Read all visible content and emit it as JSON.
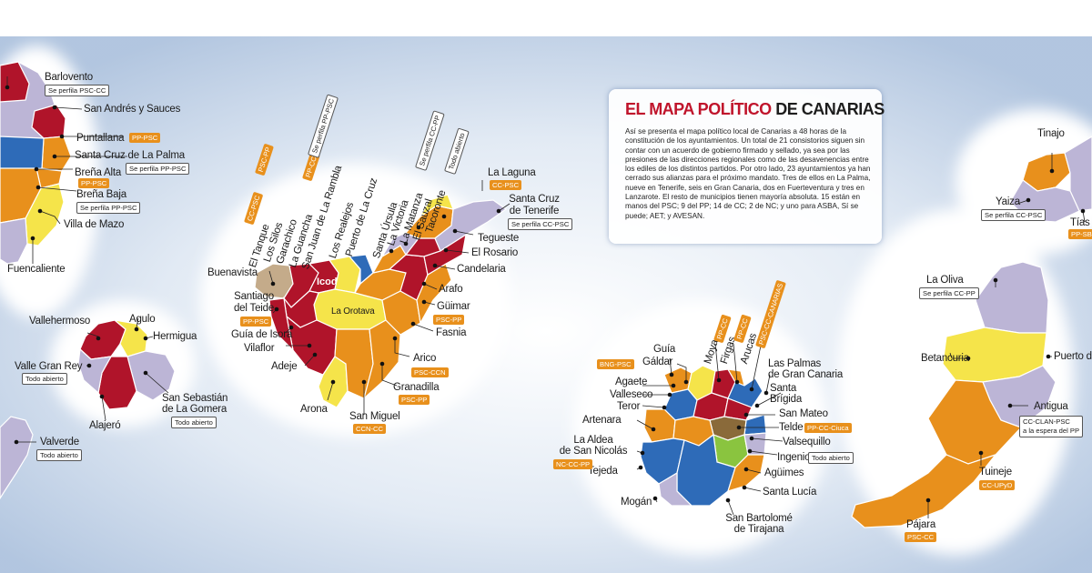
{
  "title": {
    "part1": "EL ",
    "part2": "MAPA POLÍTICO",
    "part3": " DE CANARIAS"
  },
  "body": "Así se presenta el mapa político local de Canarias a 48 horas de la constitución de los ayuntamientos. Un total de 21 consistorios siguen sin contar con un acuerdo de gobierno firmado y sellado, ya sea por las presiones de las direcciones regionales como de las desavenencias entre los ediles de los distintos partidos. Por otro lado, 23 ayuntamientos ya han cerrado sus alianzas para el próximo mandato. Tres de ellos en La Palma, nueve en Tenerife, seis en Gran Canaria, dos en Fuerteventura y tres en Lanzarote. El resto de municipios tienen mayoría absoluta. 15 están en manos del PSC; 9 del PP; 14 de CC; 2 de NC; y uno para ASBA, Sí se puede; AET; y AVESAN.",
  "colors": {
    "psc": "#b0142a",
    "cc": "#e8901c",
    "pp": "#2e6bb8",
    "mixed": "#f5e44a",
    "nc": "#b8a6d2",
    "other": "#8ac43f",
    "todo": "#bcb5d6"
  },
  "la_palma": {
    "barlovento": "Barlovento",
    "barlovento_tag": "Se perfila PSC-CC",
    "san_andres": "San Andrés y Sauces",
    "puntallana": "Puntallana",
    "puntallana_tag": "PP-PSC",
    "santa_cruz": "Santa Cruz de La Palma",
    "santa_cruz_tag": "Se perfila PP-PSC",
    "brena_alta": "Breña Alta",
    "brena_alta_tag": "PP-PSC",
    "brena_baja": "Breña Baja",
    "brena_baja_tag": "Se perfila PP-PSC",
    "mazo": "Villa de Mazo",
    "fuencaliente": "Fuencaliente"
  },
  "la_gomera": {
    "vallehermoso": "Vallehermoso",
    "agulo": "Agulo",
    "hermigua": "Hermigua",
    "valle_gran_rey": "Valle Gran Rey",
    "valle_gran_rey_tag": "Todo abierto",
    "san_sebastian_1": "San Sebastián",
    "san_sebastian_2": "de La Gomera",
    "san_sebastian_tag": "Todo abierto",
    "alajero": "Alajeró"
  },
  "el_hierro": {
    "valverde": "Valverde",
    "valverde_tag": "Todo abierto"
  },
  "tenerife": {
    "la_laguna": "La Laguna",
    "la_laguna_tag": "CC-PSC",
    "santa_cruz_1": "Santa Cruz",
    "santa_cruz_2": "de Tenerife",
    "santa_cruz_tag": "Se perfila CC-PSC",
    "tegueste": "Tegueste",
    "el_rosario": "El Rosario",
    "candelaria": "Candelaria",
    "arafo": "Arafo",
    "guimar": "Güimar",
    "guimar_tag": "PSC-PP",
    "fasnia": "Fasnia",
    "arico": "Arico",
    "arico_tag": "PSC-CCN",
    "granadilla": "Granadilla",
    "granadilla_tag": "PSC-PP",
    "san_miguel": "San Miguel",
    "san_miguel_tag": "CCN-CC",
    "arona": "Arona",
    "adeje": "Adeje",
    "vilaflor": "Vilaflor",
    "guia_isora": "Guía de Isora",
    "santiago_1": "Santiago",
    "santiago_2": "del Teide",
    "santiago_tag": "PP-PSC",
    "buenavista": "Buenavista",
    "icod": "Icod",
    "la_orotava": "La Orotava",
    "el_tanque": "El Tanque",
    "el_tanque_tag": "CC-PSC",
    "los_silos": "Los Silos",
    "garachico": "Garachico",
    "la_guancha": "La Guancha",
    "san_juan": "San Juan de La Rambla",
    "san_juan_tag": "PSC-PP",
    "los_realejos": "Los Realejos",
    "los_realejos_tag": "PP-CC",
    "puerto_cruz": "Puerto de La Cruz",
    "santa_ursula": "Santa Úrsula",
    "santa_ursula_tag": "Se perfila PP-PSC",
    "la_victoria": "La Victoria",
    "la_victoria_tag": "Se perfila CC-PP",
    "la_matanza": "La Matanza",
    "el_sauzal": "El Sauzal",
    "tacoronte": "Tacoronte",
    "tacoronte_tag": "Todo abierto"
  },
  "gran_canaria": {
    "guia": "Guía",
    "galdar": "Gáldar",
    "galdar_tag": "BNG-PSC",
    "moya": "Moya",
    "moya_tag": "PP-CC",
    "firgas": "Firgas",
    "firgas_tag": "PP-CC",
    "arucas": "Arucas",
    "arucas_tag": "PSC-CC-CANARIAS",
    "las_palmas_1": "Las Palmas",
    "las_palmas_2": "de Gran Canaria",
    "santa_brigida_1": "Santa",
    "santa_brigida_2": "Brígida",
    "san_mateo": "San Mateo",
    "telde": "Telde",
    "telde_tag": "PP-CC-Ciuca",
    "valsequillo": "Valsequillo",
    "ingenio": "Ingenio",
    "ingenio_tag": "Todo abierto",
    "aguimes": "Agüimes",
    "santa_lucia": "Santa Lucía",
    "san_bartolome_1": "San Bartolomé",
    "san_bartolome_2": "de Tirajana",
    "mogan": "Mogán",
    "tejeda": "Tejeda",
    "la_aldea_1": "La Aldea",
    "la_aldea_2": "de San Nicolás",
    "la_aldea_tag": "NC-CC-PP",
    "artenara": "Artenara",
    "teror": "Teror",
    "valleseco": "Valleseco",
    "agaete": "Agaete"
  },
  "fuerteventura": {
    "la_oliva": "La Oliva",
    "la_oliva_tag": "Se perfila CC-PP",
    "puerto": "Puerto de",
    "betancuria": "Betancuria",
    "antigua": "Antigua",
    "antigua_tag_1": "CC-CLAN-PSC",
    "antigua_tag_2": "a la espera del PP",
    "tuineje": "Tuineje",
    "tuineje_tag": "CC-UPyD",
    "pajara": "Pájara",
    "pajara_tag": "PSC-CC"
  },
  "lanzarote": {
    "tinajo": "Tinajo",
    "yaiza": "Yaiza",
    "yaiza_tag": "Se perfila CC-PSC",
    "tias": "Tías",
    "tias_tag": "PP-SB"
  }
}
